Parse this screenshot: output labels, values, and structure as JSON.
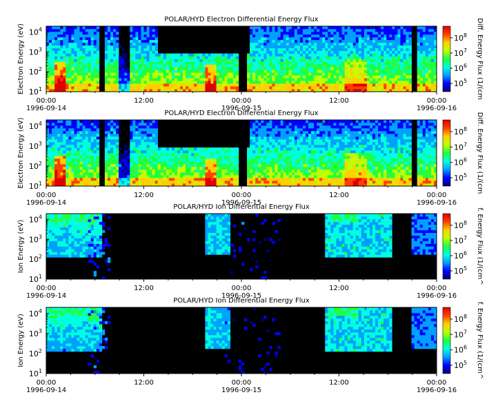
{
  "chart_data": [
    {
      "type": "heatmap",
      "title": "POLAR/HYD  Electron Differential Energy Flux",
      "ylabel": "Electron Energy (eV)",
      "colorbar_label": "Diff. Energy Flux (1/(cm",
      "yscale": "log",
      "ylim": [
        10,
        20000
      ],
      "y_ticks": [
        {
          "base": "10",
          "exp": "1"
        },
        {
          "base": "10",
          "exp": "2"
        },
        {
          "base": "10",
          "exp": "3"
        },
        {
          "base": "10",
          "exp": "4"
        }
      ],
      "x_ticks": [
        {
          "time": "00:00",
          "date": "1996-09-14"
        },
        {
          "time": "12:00",
          "date": ""
        },
        {
          "time": "00:00",
          "date": "1996-09-15"
        },
        {
          "time": "12:00",
          "date": ""
        },
        {
          "time": "00:00",
          "date": "1996-09-16"
        }
      ],
      "colorbar_ticks": [
        {
          "base": "10",
          "exp": "5"
        },
        {
          "base": "10",
          "exp": "6"
        },
        {
          "base": "10",
          "exp": "7"
        },
        {
          "base": "10",
          "exp": "8"
        }
      ],
      "colorscale": "log"
    },
    {
      "type": "heatmap",
      "title": "POLAR/HYD  Electron Differential Energy Flux",
      "ylabel": "Electron Energy (eV)",
      "colorbar_label": "Diff. Energy Flux (1/(cm",
      "yscale": "log",
      "ylim": [
        10,
        20000
      ],
      "y_ticks": [
        {
          "base": "10",
          "exp": "1"
        },
        {
          "base": "10",
          "exp": "2"
        },
        {
          "base": "10",
          "exp": "3"
        },
        {
          "base": "10",
          "exp": "4"
        }
      ],
      "x_ticks": [
        {
          "time": "00:00",
          "date": "1996-09-14"
        },
        {
          "time": "12:00",
          "date": ""
        },
        {
          "time": "00:00",
          "date": "1996-09-15"
        },
        {
          "time": "12:00",
          "date": ""
        },
        {
          "time": "00:00",
          "date": "1996-09-16"
        }
      ],
      "colorbar_ticks": [
        {
          "base": "10",
          "exp": "5"
        },
        {
          "base": "10",
          "exp": "6"
        },
        {
          "base": "10",
          "exp": "7"
        },
        {
          "base": "10",
          "exp": "8"
        }
      ],
      "colorscale": "log"
    },
    {
      "type": "heatmap",
      "title": "POLAR/HYD  Ion Differential Energy Flux",
      "ylabel": "Ion Energy (eV)",
      "colorbar_label": "f. Energy Flux (1/(cm^",
      "yscale": "log",
      "ylim": [
        10,
        20000
      ],
      "y_ticks": [
        {
          "base": "10",
          "exp": "1"
        },
        {
          "base": "10",
          "exp": "2"
        },
        {
          "base": "10",
          "exp": "3"
        },
        {
          "base": "10",
          "exp": "4"
        }
      ],
      "x_ticks": [
        {
          "time": "00:00",
          "date": "1996-09-14"
        },
        {
          "time": "12:00",
          "date": ""
        },
        {
          "time": "00:00",
          "date": "1996-09-15"
        },
        {
          "time": "12:00",
          "date": ""
        },
        {
          "time": "00:00",
          "date": "1996-09-16"
        }
      ],
      "colorbar_ticks": [
        {
          "base": "10",
          "exp": "5"
        },
        {
          "base": "10",
          "exp": "6"
        },
        {
          "base": "10",
          "exp": "7"
        },
        {
          "base": "10",
          "exp": "8"
        }
      ],
      "colorscale": "log"
    },
    {
      "type": "heatmap",
      "title": "POLAR/HYD  Ion Differential Energy Flux",
      "ylabel": "Ion Energy (eV)",
      "colorbar_label": "f. Energy Flux (1/(cm^",
      "yscale": "log",
      "ylim": [
        10,
        20000
      ],
      "y_ticks": [
        {
          "base": "10",
          "exp": "1"
        },
        {
          "base": "10",
          "exp": "2"
        },
        {
          "base": "10",
          "exp": "3"
        },
        {
          "base": "10",
          "exp": "4"
        }
      ],
      "x_ticks": [
        {
          "time": "00:00",
          "date": "1996-09-14"
        },
        {
          "time": "12:00",
          "date": ""
        },
        {
          "time": "00:00",
          "date": "1996-09-15"
        },
        {
          "time": "12:00",
          "date": ""
        },
        {
          "time": "00:00",
          "date": "1996-09-16"
        }
      ],
      "colorbar_ticks": [
        {
          "base": "10",
          "exp": "5"
        },
        {
          "base": "10",
          "exp": "6"
        },
        {
          "base": "10",
          "exp": "7"
        },
        {
          "base": "10",
          "exp": "8"
        }
      ],
      "colorscale": "log"
    }
  ],
  "colors": {
    "background_fill": "#000000",
    "colormap": [
      "#000070",
      "#0000ff",
      "#00a0ff",
      "#00ffe0",
      "#20ff40",
      "#c0ff00",
      "#ffd000",
      "#ff4000",
      "#e00000"
    ]
  }
}
